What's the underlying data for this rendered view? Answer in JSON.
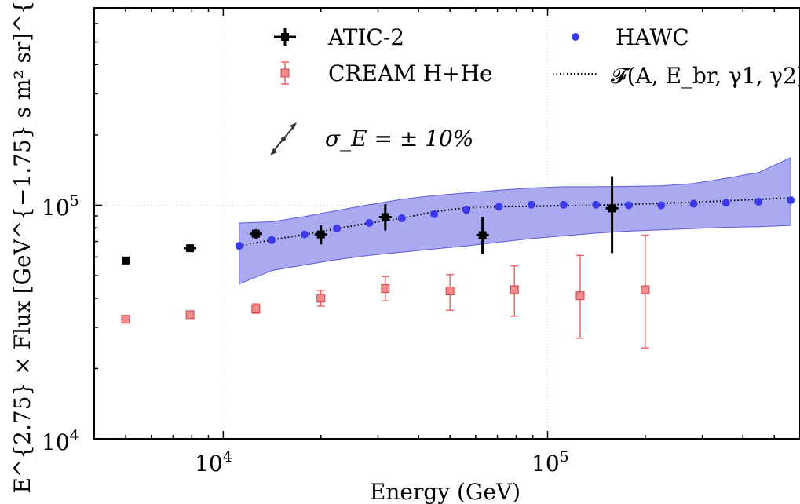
{
  "chart_data": {
    "type": "scatter",
    "xlabel": "Energy (GeV)",
    "ylabel": "E^{2.75} × Flux [GeV^{−1.75} s m² sr]^{−1}",
    "xscale": "log",
    "yscale": "log",
    "xlim": [
      4000,
      600000
    ],
    "ylim": [
      10000,
      700000
    ],
    "grid": "dotted, at major ticks",
    "legend_position": "top",
    "x_ticks": [
      {
        "base": "10",
        "exp": "4",
        "value": 10000
      },
      {
        "base": "10",
        "exp": "5",
        "value": 100000
      }
    ],
    "y_ticks": [
      {
        "base": "10",
        "exp": "4",
        "value": 10000
      },
      {
        "base": "10",
        "exp": "5",
        "value": 100000
      }
    ],
    "series": [
      {
        "name": "ATIC-2",
        "color": "#000000",
        "marker": "square",
        "points": [
          {
            "x": 5000,
            "y": 58000,
            "ylo": 58000,
            "yhi": 58000
          },
          {
            "x": 7900,
            "y": 65500,
            "ylo": 64000,
            "yhi": 67000
          },
          {
            "x": 12600,
            "y": 75500,
            "ylo": 72000,
            "yhi": 79000
          },
          {
            "x": 20000,
            "y": 75000,
            "ylo": 68000,
            "yhi": 82000
          },
          {
            "x": 31600,
            "y": 89000,
            "ylo": 78000,
            "yhi": 101000
          },
          {
            "x": 63000,
            "y": 74500,
            "ylo": 62000,
            "yhi": 89000
          },
          {
            "x": 158000,
            "y": 97000,
            "ylo": 62500,
            "yhi": 133000
          }
        ]
      },
      {
        "name": "CREAM H+He",
        "color": "#ee6666",
        "marker": "square",
        "points": [
          {
            "x": 5000,
            "y": 32500,
            "ylo": 32500,
            "yhi": 32500
          },
          {
            "x": 7900,
            "y": 34000,
            "ylo": 33200,
            "yhi": 34800
          },
          {
            "x": 12600,
            "y": 36000,
            "ylo": 34500,
            "yhi": 37800
          },
          {
            "x": 20000,
            "y": 40000,
            "ylo": 37000,
            "yhi": 43200
          },
          {
            "x": 31600,
            "y": 44000,
            "ylo": 39000,
            "yhi": 49500
          },
          {
            "x": 50000,
            "y": 43000,
            "ylo": 35500,
            "yhi": 50500
          },
          {
            "x": 79000,
            "y": 43500,
            "ylo": 33500,
            "yhi": 55000
          },
          {
            "x": 126000,
            "y": 41000,
            "ylo": 27000,
            "yhi": 61000
          },
          {
            "x": 200000,
            "y": 43500,
            "ylo": 24500,
            "yhi": 74500
          }
        ]
      },
      {
        "name": "HAWC",
        "color": "#3b3beb",
        "marker": "circle",
        "x": [
          11200,
          14100,
          17800,
          22400,
          28200,
          35500,
          44700,
          56200,
          70800,
          89100,
          112000,
          141000,
          178000,
          224000,
          282000,
          355000,
          447000,
          562000
        ],
        "y": [
          67000,
          71000,
          75000,
          79500,
          84000,
          88000,
          91500,
          95500,
          98500,
          100500,
          100500,
          100500,
          100000,
          100000,
          101500,
          102500,
          103500,
          105000
        ],
        "band": {
          "x": [
            11200,
            14100,
            17800,
            22400,
            28200,
            35500,
            44700,
            56200,
            70800,
            89100,
            112000,
            141000,
            178000,
            224000,
            282000,
            355000,
            447000,
            562000
          ],
          "ylo": [
            46000,
            52500,
            55500,
            58500,
            61000,
            63000,
            65000,
            67000,
            69500,
            72000,
            74000,
            76000,
            77500,
            78500,
            79500,
            80500,
            81000,
            82000
          ],
          "yhi": [
            84000,
            85000,
            89500,
            95000,
            100500,
            106000,
            110000,
            113000,
            116000,
            118500,
            120000,
            120000,
            120500,
            121000,
            124000,
            130500,
            138000,
            160000
          ]
        },
        "band_color": "#7272e8"
      },
      {
        "name": "𝓕(A, E_br, γ1, γ2)",
        "color": "#000000",
        "style": "dotted",
        "x": [
          11200,
          14100,
          17800,
          22400,
          28200,
          35500,
          44700,
          56200,
          70800,
          89100,
          112000,
          141000,
          178000,
          224000,
          282000,
          355000,
          447000,
          562000
        ],
        "y": [
          67000,
          71000,
          75000,
          79500,
          84000,
          88000,
          94000,
          97500,
          98500,
          99000,
          99500,
          100000,
          101000,
          102000,
          103000,
          104500,
          106000,
          107500
        ]
      }
    ],
    "annotation": {
      "text": "σ_E = ± 10%"
    }
  }
}
